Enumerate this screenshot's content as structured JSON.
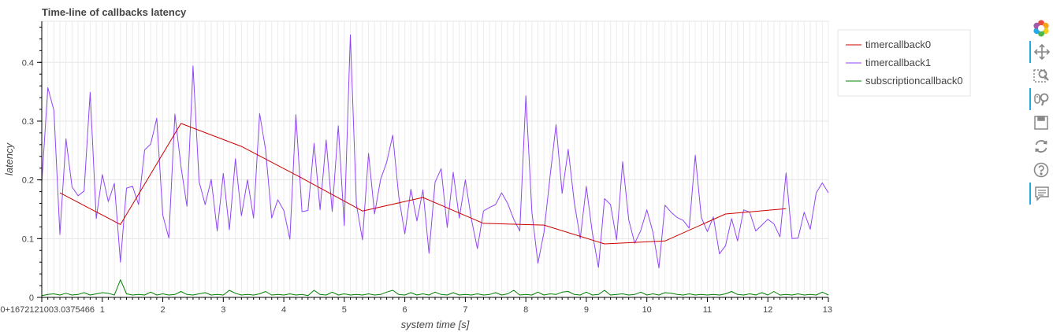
{
  "chart_data": {
    "type": "line",
    "title": "Time-line of callbacks latency",
    "xlabel": "system time [s]",
    "ylabel": "latency",
    "xlim": [
      0,
      13
    ],
    "ylim": [
      0,
      0.47
    ],
    "x_ticks": [
      {
        "value": 0,
        "label": "0+1672121003.0375466"
      },
      {
        "value": 1,
        "label": "1"
      },
      {
        "value": 2,
        "label": "2"
      },
      {
        "value": 3,
        "label": "3"
      },
      {
        "value": 4,
        "label": "4"
      },
      {
        "value": 5,
        "label": "5"
      },
      {
        "value": 6,
        "label": "6"
      },
      {
        "value": 7,
        "label": "7"
      },
      {
        "value": 8,
        "label": "8"
      },
      {
        "value": 9,
        "label": "9"
      },
      {
        "value": 10,
        "label": "10"
      },
      {
        "value": 11,
        "label": "11"
      },
      {
        "value": 12,
        "label": "12"
      },
      {
        "value": 13,
        "label": "13"
      }
    ],
    "y_ticks": [
      {
        "value": 0,
        "label": "0"
      },
      {
        "value": 0.1,
        "label": "0.1"
      },
      {
        "value": 0.2,
        "label": "0.2"
      },
      {
        "value": 0.3,
        "label": "0.3"
      },
      {
        "value": 0.4,
        "label": "0.4"
      }
    ],
    "legend_position": "outside-right",
    "series": [
      {
        "name": "timercallback0",
        "color": "#cc0000",
        "x": [
          0.3,
          1.3,
          2.3,
          3.3,
          4.3,
          5.3,
          6.3,
          7.3,
          8.3,
          9.3,
          10.3,
          11.3,
          12.3
        ],
        "y": [
          0.178,
          0.124,
          0.296,
          0.257,
          0.203,
          0.147,
          0.17,
          0.126,
          0.123,
          0.091,
          0.096,
          0.142,
          0.151
        ]
      },
      {
        "name": "timercallback1",
        "color": "#9146f5",
        "x": [
          0.0,
          0.1,
          0.2,
          0.3,
          0.4,
          0.5,
          0.6,
          0.7,
          0.8,
          0.9,
          1.0,
          1.1,
          1.2,
          1.3,
          1.4,
          1.5,
          1.6,
          1.7,
          1.8,
          1.9,
          2.0,
          2.1,
          2.2,
          2.3,
          2.4,
          2.5,
          2.6,
          2.7,
          2.8,
          2.9,
          3.0,
          3.1,
          3.2,
          3.3,
          3.4,
          3.5,
          3.6,
          3.7,
          3.8,
          3.9,
          4.0,
          4.1,
          4.2,
          4.3,
          4.4,
          4.5,
          4.6,
          4.7,
          4.8,
          4.9,
          5.0,
          5.1,
          5.2,
          5.3,
          5.4,
          5.5,
          5.6,
          5.7,
          5.8,
          5.9,
          6.0,
          6.1,
          6.2,
          6.3,
          6.4,
          6.5,
          6.6,
          6.7,
          6.8,
          6.9,
          7.0,
          7.1,
          7.2,
          7.3,
          7.4,
          7.5,
          7.6,
          7.7,
          7.8,
          7.9,
          8.0,
          8.1,
          8.2,
          8.3,
          8.4,
          8.5,
          8.6,
          8.7,
          8.8,
          8.9,
          9.0,
          9.1,
          9.2,
          9.3,
          9.4,
          9.5,
          9.6,
          9.7,
          9.8,
          9.9,
          10.0,
          10.1,
          10.2,
          10.3,
          10.4,
          10.5,
          10.6,
          10.7,
          10.8,
          10.9,
          11.0,
          11.1,
          11.2,
          11.3,
          11.4,
          11.5,
          11.6,
          11.7,
          11.8,
          11.9,
          12.0,
          12.1,
          12.2,
          12.3,
          12.4,
          12.5,
          12.6,
          12.7,
          12.8,
          12.9,
          13.0
        ],
        "y": [
          0.195,
          0.357,
          0.318,
          0.107,
          0.27,
          0.188,
          0.173,
          0.181,
          0.349,
          0.134,
          0.209,
          0.163,
          0.194,
          0.06,
          0.186,
          0.189,
          0.158,
          0.251,
          0.261,
          0.305,
          0.14,
          0.101,
          0.312,
          0.223,
          0.155,
          0.394,
          0.197,
          0.158,
          0.201,
          0.113,
          0.211,
          0.115,
          0.236,
          0.139,
          0.2,
          0.135,
          0.313,
          0.251,
          0.135,
          0.166,
          0.148,
          0.099,
          0.311,
          0.146,
          0.148,
          0.262,
          0.149,
          0.268,
          0.146,
          0.292,
          0.122,
          0.447,
          0.158,
          0.098,
          0.245,
          0.142,
          0.201,
          0.23,
          0.276,
          0.172,
          0.108,
          0.184,
          0.13,
          0.183,
          0.075,
          0.196,
          0.219,
          0.119,
          0.213,
          0.135,
          0.2,
          0.133,
          0.083,
          0.147,
          0.153,
          0.158,
          0.178,
          0.16,
          0.133,
          0.113,
          0.343,
          0.146,
          0.058,
          0.111,
          0.206,
          0.294,
          0.177,
          0.252,
          0.162,
          0.1,
          0.189,
          0.109,
          0.051,
          0.168,
          0.158,
          0.098,
          0.231,
          0.132,
          0.092,
          0.114,
          0.149,
          0.111,
          0.05,
          0.157,
          0.145,
          0.136,
          0.131,
          0.118,
          0.242,
          0.136,
          0.112,
          0.137,
          0.074,
          0.088,
          0.134,
          0.096,
          0.149,
          0.145,
          0.113,
          0.123,
          0.133,
          0.125,
          0.103,
          0.212,
          0.1,
          0.101,
          0.145,
          0.116,
          0.178,
          0.195,
          0.178
        ]
      },
      {
        "name": "subscriptioncallback0",
        "color": "#008000",
        "x": [
          0.0,
          0.1,
          0.2,
          0.3,
          0.4,
          0.5,
          0.6,
          0.7,
          0.8,
          0.9,
          1.0,
          1.1,
          1.2,
          1.3,
          1.4,
          1.5,
          1.6,
          1.7,
          1.8,
          1.9,
          2.0,
          2.1,
          2.2,
          2.3,
          2.4,
          2.5,
          2.6,
          2.7,
          2.8,
          2.9,
          3.0,
          3.1,
          3.2,
          3.3,
          3.4,
          3.5,
          3.6,
          3.7,
          3.8,
          3.9,
          4.0,
          4.1,
          4.2,
          4.3,
          4.4,
          4.5,
          4.6,
          4.7,
          4.8,
          4.9,
          5.0,
          5.1,
          5.2,
          5.3,
          5.4,
          5.5,
          5.6,
          5.7,
          5.8,
          5.9,
          6.0,
          6.1,
          6.2,
          6.3,
          6.4,
          6.5,
          6.6,
          6.7,
          6.8,
          6.9,
          7.0,
          7.1,
          7.2,
          7.3,
          7.4,
          7.5,
          7.6,
          7.7,
          7.8,
          7.9,
          8.0,
          8.1,
          8.2,
          8.3,
          8.4,
          8.5,
          8.6,
          8.7,
          8.8,
          8.9,
          9.0,
          9.1,
          9.2,
          9.3,
          9.4,
          9.5,
          9.6,
          9.7,
          9.8,
          9.9,
          10.0,
          10.1,
          10.2,
          10.3,
          10.4,
          10.5,
          10.6,
          10.7,
          10.8,
          10.9,
          11.0,
          11.1,
          11.2,
          11.3,
          11.4,
          11.5,
          11.6,
          11.7,
          11.8,
          11.9,
          12.0,
          12.1,
          12.2,
          12.3,
          12.4,
          12.5,
          12.6,
          12.7,
          12.8,
          12.9,
          13.0
        ],
        "y": [
          0.003,
          0.005,
          0.006,
          0.004,
          0.007,
          0.004,
          0.005,
          0.008,
          0.004,
          0.006,
          0.008,
          0.007,
          0.004,
          0.03,
          0.006,
          0.004,
          0.005,
          0.004,
          0.009,
          0.004,
          0.006,
          0.004,
          0.005,
          0.01,
          0.005,
          0.004,
          0.006,
          0.008,
          0.004,
          0.005,
          0.004,
          0.012,
          0.007,
          0.004,
          0.005,
          0.004,
          0.006,
          0.01,
          0.004,
          0.005,
          0.004,
          0.006,
          0.004,
          0.005,
          0.003,
          0.012,
          0.005,
          0.004,
          0.009,
          0.004,
          0.006,
          0.004,
          0.005,
          0.004,
          0.006,
          0.004,
          0.005,
          0.009,
          0.012,
          0.005,
          0.004,
          0.008,
          0.004,
          0.006,
          0.004,
          0.009,
          0.005,
          0.004,
          0.008,
          0.004,
          0.005,
          0.004,
          0.006,
          0.004,
          0.005,
          0.008,
          0.004,
          0.006,
          0.012,
          0.004,
          0.005,
          0.004,
          0.009,
          0.004,
          0.006,
          0.005,
          0.009,
          0.01,
          0.005,
          0.004,
          0.009,
          0.004,
          0.005,
          0.012,
          0.004,
          0.005,
          0.006,
          0.004,
          0.005,
          0.009,
          0.004,
          0.006,
          0.004,
          0.008,
          0.007,
          0.005,
          0.004,
          0.006,
          0.004,
          0.005,
          0.004,
          0.005,
          0.004,
          0.006,
          0.01,
          0.005,
          0.004,
          0.006,
          0.004,
          0.008,
          0.004,
          0.01,
          0.004,
          0.005,
          0.004,
          0.006,
          0.004,
          0.005,
          0.004,
          0.009,
          0.004
        ]
      }
    ]
  },
  "toolbar": {
    "tools": [
      {
        "name": "bokeh-logo-icon",
        "active": false
      },
      {
        "name": "pan-tool-icon",
        "active": true
      },
      {
        "name": "box-zoom-tool-icon",
        "active": false
      },
      {
        "name": "wheel-zoom-tool-icon",
        "active": true
      },
      {
        "name": "save-tool-icon",
        "active": false
      },
      {
        "name": "reset-tool-icon",
        "active": false
      },
      {
        "name": "help-tool-icon",
        "active": false
      },
      {
        "name": "hover-tool-icon",
        "active": true
      }
    ]
  }
}
